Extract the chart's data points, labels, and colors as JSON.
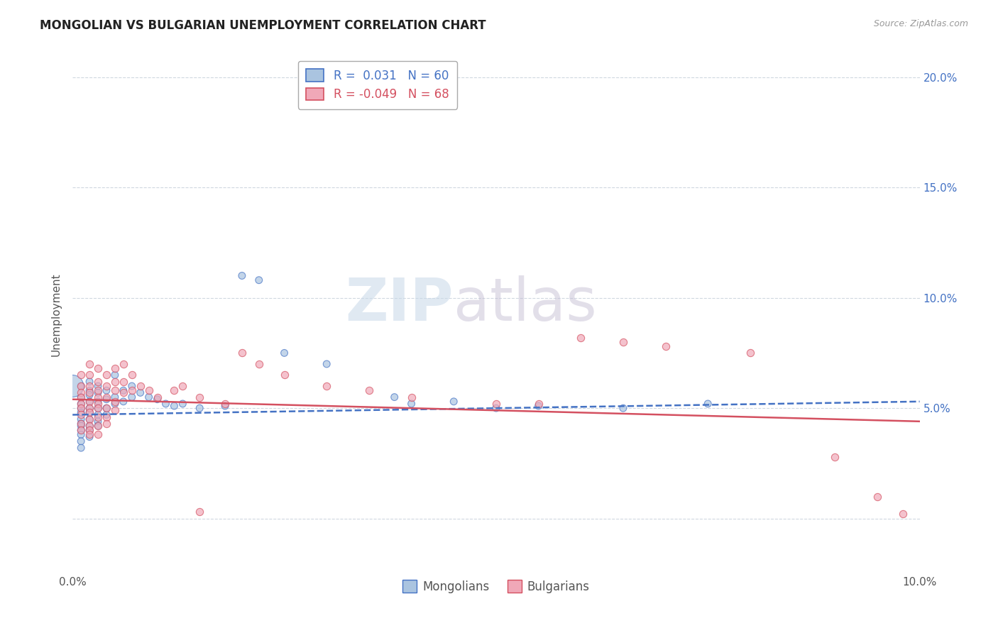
{
  "title": "MONGOLIAN VS BULGARIAN UNEMPLOYMENT CORRELATION CHART",
  "source": "Source: ZipAtlas.com",
  "ylabel": "Unemployment",
  "watermark_zip": "ZIP",
  "watermark_atlas": "atlas",
  "legend": {
    "mongolians": {
      "R": 0.031,
      "N": 60,
      "color": "#aac4e0",
      "line_color": "#4472c4"
    },
    "bulgarians": {
      "R": -0.049,
      "N": 68,
      "color": "#f0a8b8",
      "line_color": "#d45060"
    }
  },
  "xlim": [
    0.0,
    0.1
  ],
  "ylim": [
    -0.025,
    0.21
  ],
  "xticks": [
    0.0,
    0.02,
    0.04,
    0.06,
    0.08,
    0.1
  ],
  "xtick_labels": [
    "0.0%",
    "",
    "",
    "",
    "",
    "10.0%"
  ],
  "yticks": [
    0.0,
    0.05,
    0.1,
    0.15,
    0.2
  ],
  "ytick_labels_right": [
    "",
    "5.0%",
    "10.0%",
    "15.0%",
    "20.0%"
  ],
  "background_color": "#ffffff",
  "grid_color": "#d0d8e0",
  "mongolian_line": [
    0.0,
    0.1,
    0.047,
    0.053
  ],
  "bulgarian_line": [
    0.0,
    0.1,
    0.054,
    0.044
  ],
  "mongolian_scatter": [
    [
      0.001,
      0.06
    ],
    [
      0.001,
      0.055
    ],
    [
      0.001,
      0.052
    ],
    [
      0.001,
      0.05
    ],
    [
      0.001,
      0.048
    ],
    [
      0.001,
      0.045
    ],
    [
      0.001,
      0.043
    ],
    [
      0.001,
      0.042
    ],
    [
      0.001,
      0.04
    ],
    [
      0.001,
      0.038
    ],
    [
      0.001,
      0.035
    ],
    [
      0.001,
      0.032
    ],
    [
      0.002,
      0.062
    ],
    [
      0.002,
      0.058
    ],
    [
      0.002,
      0.056
    ],
    [
      0.002,
      0.053
    ],
    [
      0.002,
      0.05
    ],
    [
      0.002,
      0.048
    ],
    [
      0.002,
      0.045
    ],
    [
      0.002,
      0.042
    ],
    [
      0.002,
      0.04
    ],
    [
      0.002,
      0.037
    ],
    [
      0.003,
      0.06
    ],
    [
      0.003,
      0.057
    ],
    [
      0.003,
      0.053
    ],
    [
      0.003,
      0.05
    ],
    [
      0.003,
      0.047
    ],
    [
      0.003,
      0.044
    ],
    [
      0.003,
      0.042
    ],
    [
      0.004,
      0.058
    ],
    [
      0.004,
      0.054
    ],
    [
      0.004,
      0.05
    ],
    [
      0.004,
      0.047
    ],
    [
      0.005,
      0.065
    ],
    [
      0.005,
      0.055
    ],
    [
      0.005,
      0.052
    ],
    [
      0.006,
      0.058
    ],
    [
      0.006,
      0.053
    ],
    [
      0.007,
      0.06
    ],
    [
      0.007,
      0.055
    ],
    [
      0.008,
      0.057
    ],
    [
      0.009,
      0.055
    ],
    [
      0.01,
      0.054
    ],
    [
      0.011,
      0.052
    ],
    [
      0.012,
      0.051
    ],
    [
      0.013,
      0.052
    ],
    [
      0.015,
      0.05
    ],
    [
      0.018,
      0.051
    ],
    [
      0.02,
      0.11
    ],
    [
      0.022,
      0.108
    ],
    [
      0.025,
      0.075
    ],
    [
      0.03,
      0.07
    ],
    [
      0.038,
      0.055
    ],
    [
      0.04,
      0.052
    ],
    [
      0.045,
      0.053
    ],
    [
      0.05,
      0.05
    ],
    [
      0.055,
      0.051
    ],
    [
      0.065,
      0.05
    ],
    [
      0.075,
      0.052
    ],
    [
      0.0,
      0.06
    ]
  ],
  "mongolian_sizes": [
    50,
    50,
    50,
    50,
    50,
    50,
    50,
    50,
    50,
    50,
    50,
    50,
    50,
    50,
    50,
    50,
    50,
    50,
    50,
    50,
    50,
    50,
    50,
    50,
    50,
    50,
    50,
    50,
    50,
    50,
    50,
    50,
    50,
    50,
    50,
    50,
    50,
    50,
    50,
    50,
    50,
    50,
    50,
    50,
    50,
    50,
    50,
    50,
    50,
    50,
    50,
    50,
    50,
    50,
    50,
    50,
    50,
    50,
    50,
    500
  ],
  "bulgarian_scatter": [
    [
      0.001,
      0.065
    ],
    [
      0.001,
      0.06
    ],
    [
      0.001,
      0.057
    ],
    [
      0.001,
      0.055
    ],
    [
      0.001,
      0.052
    ],
    [
      0.001,
      0.05
    ],
    [
      0.001,
      0.047
    ],
    [
      0.001,
      0.043
    ],
    [
      0.001,
      0.04
    ],
    [
      0.002,
      0.07
    ],
    [
      0.002,
      0.065
    ],
    [
      0.002,
      0.06
    ],
    [
      0.002,
      0.057
    ],
    [
      0.002,
      0.053
    ],
    [
      0.002,
      0.05
    ],
    [
      0.002,
      0.048
    ],
    [
      0.002,
      0.045
    ],
    [
      0.002,
      0.042
    ],
    [
      0.002,
      0.04
    ],
    [
      0.002,
      0.038
    ],
    [
      0.003,
      0.068
    ],
    [
      0.003,
      0.062
    ],
    [
      0.003,
      0.058
    ],
    [
      0.003,
      0.055
    ],
    [
      0.003,
      0.052
    ],
    [
      0.003,
      0.05
    ],
    [
      0.003,
      0.046
    ],
    [
      0.003,
      0.042
    ],
    [
      0.003,
      0.038
    ],
    [
      0.004,
      0.065
    ],
    [
      0.004,
      0.06
    ],
    [
      0.004,
      0.055
    ],
    [
      0.004,
      0.05
    ],
    [
      0.004,
      0.046
    ],
    [
      0.004,
      0.043
    ],
    [
      0.005,
      0.068
    ],
    [
      0.005,
      0.062
    ],
    [
      0.005,
      0.058
    ],
    [
      0.005,
      0.053
    ],
    [
      0.005,
      0.049
    ],
    [
      0.006,
      0.07
    ],
    [
      0.006,
      0.062
    ],
    [
      0.006,
      0.057
    ],
    [
      0.007,
      0.065
    ],
    [
      0.007,
      0.058
    ],
    [
      0.008,
      0.06
    ],
    [
      0.009,
      0.058
    ],
    [
      0.01,
      0.055
    ],
    [
      0.012,
      0.058
    ],
    [
      0.013,
      0.06
    ],
    [
      0.015,
      0.055
    ],
    [
      0.018,
      0.052
    ],
    [
      0.02,
      0.075
    ],
    [
      0.022,
      0.07
    ],
    [
      0.025,
      0.065
    ],
    [
      0.03,
      0.06
    ],
    [
      0.035,
      0.058
    ],
    [
      0.04,
      0.055
    ],
    [
      0.05,
      0.052
    ],
    [
      0.055,
      0.052
    ],
    [
      0.06,
      0.082
    ],
    [
      0.065,
      0.08
    ],
    [
      0.07,
      0.078
    ],
    [
      0.08,
      0.075
    ],
    [
      0.09,
      0.028
    ],
    [
      0.095,
      0.01
    ],
    [
      0.098,
      0.002
    ],
    [
      0.015,
      0.003
    ]
  ]
}
